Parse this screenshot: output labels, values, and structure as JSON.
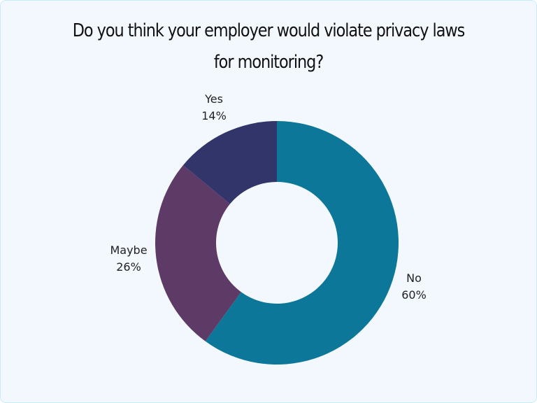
{
  "title_line1": "Do you think your employer would violate privacy laws",
  "title_line2": "for monitoring?",
  "chart_data": {
    "type": "pie",
    "subtype": "donut",
    "title": "Do you think your employer would violate privacy laws for monitoring?",
    "categories": [
      "No",
      "Maybe",
      "Yes"
    ],
    "values": [
      60,
      26,
      14
    ],
    "unit": "%",
    "colors": [
      "#0c7799",
      "#5e3a67",
      "#31356a"
    ],
    "labels": [
      {
        "name": "No",
        "value": "60%"
      },
      {
        "name": "Maybe",
        "value": "26%"
      },
      {
        "name": "Yes",
        "value": "14%"
      }
    ],
    "legend": "none (labels placed beside slices)",
    "start_angle": "12 o'clock, clockwise"
  },
  "colors": {
    "background": "#f3f8fe",
    "border": "#c9ecf7"
  }
}
